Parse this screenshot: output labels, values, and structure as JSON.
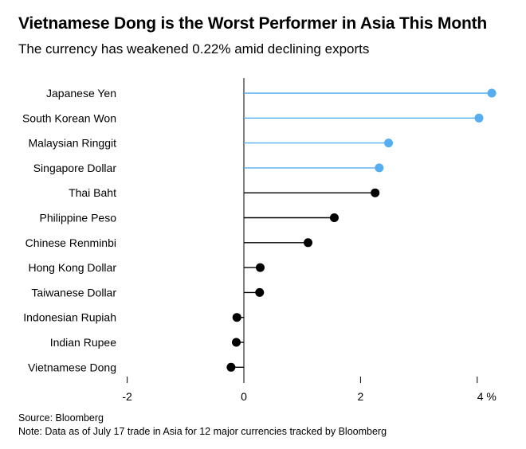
{
  "title": "Vietnamese Dong is the Worst Performer in Asia This Month",
  "subtitle": "The currency has weakened 0.22% amid declining exports",
  "source": "Source: Bloomberg",
  "note": "Note: Data as of July 17 trade in Asia for 12 major currencies tracked by Bloomberg",
  "colors": {
    "highlight": "#56aef0",
    "default": "#000000",
    "axis": "#000000"
  },
  "chart_data": {
    "type": "lollipop",
    "orientation": "horizontal",
    "categories": [
      "Japanese Yen",
      "South Korean Won",
      "Malaysian Ringgit",
      "Singapore Dollar",
      "Thai Baht",
      "Philippine Peso",
      "Chinese Renminbi",
      "Hong Kong Dollar",
      "Taiwanese Dollar",
      "Indonesian Rupiah",
      "Indian Rupee",
      "Vietnamese Dong"
    ],
    "values": [
      4.25,
      4.03,
      2.48,
      2.32,
      2.25,
      1.55,
      1.1,
      0.28,
      0.27,
      -0.12,
      -0.13,
      -0.22
    ],
    "highlighted": [
      true,
      true,
      true,
      true,
      false,
      false,
      false,
      false,
      false,
      false,
      false,
      false
    ],
    "xlim": [
      -2,
      4.25
    ],
    "xticks": [
      {
        "value": -2,
        "label": "-2"
      },
      {
        "value": 0,
        "label": "0"
      },
      {
        "value": 2,
        "label": "2"
      },
      {
        "value": 4,
        "label": "4 %"
      }
    ],
    "xlabel": "",
    "ylabel": "",
    "grid": false
  }
}
